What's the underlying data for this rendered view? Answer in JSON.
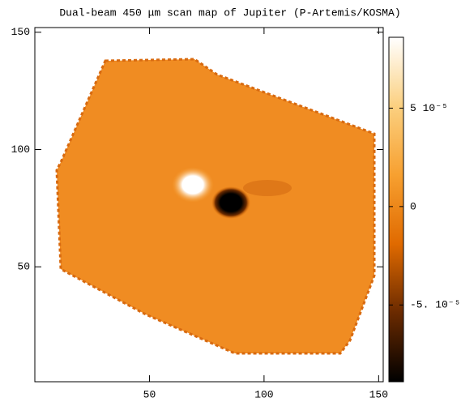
{
  "chart_data": {
    "type": "heatmap",
    "title": "Dual-beam 450 μm scan map of Jupiter (P-Artemis/KOSMA)",
    "xlim": [
      0,
      152
    ],
    "xticks": [
      50,
      100,
      150
    ],
    "ylim": [
      1,
      152
    ],
    "yticks": [
      50,
      100,
      150
    ],
    "colorbar": {
      "lim": [
        -8.9e-05,
        8.6e-05
      ],
      "ticks": [
        {
          "value": 5e-05,
          "label": "5 10⁻⁵"
        },
        0,
        {
          "value": -5e-05,
          "label": "-5. 10⁻⁵"
        }
      ]
    }
  }
}
